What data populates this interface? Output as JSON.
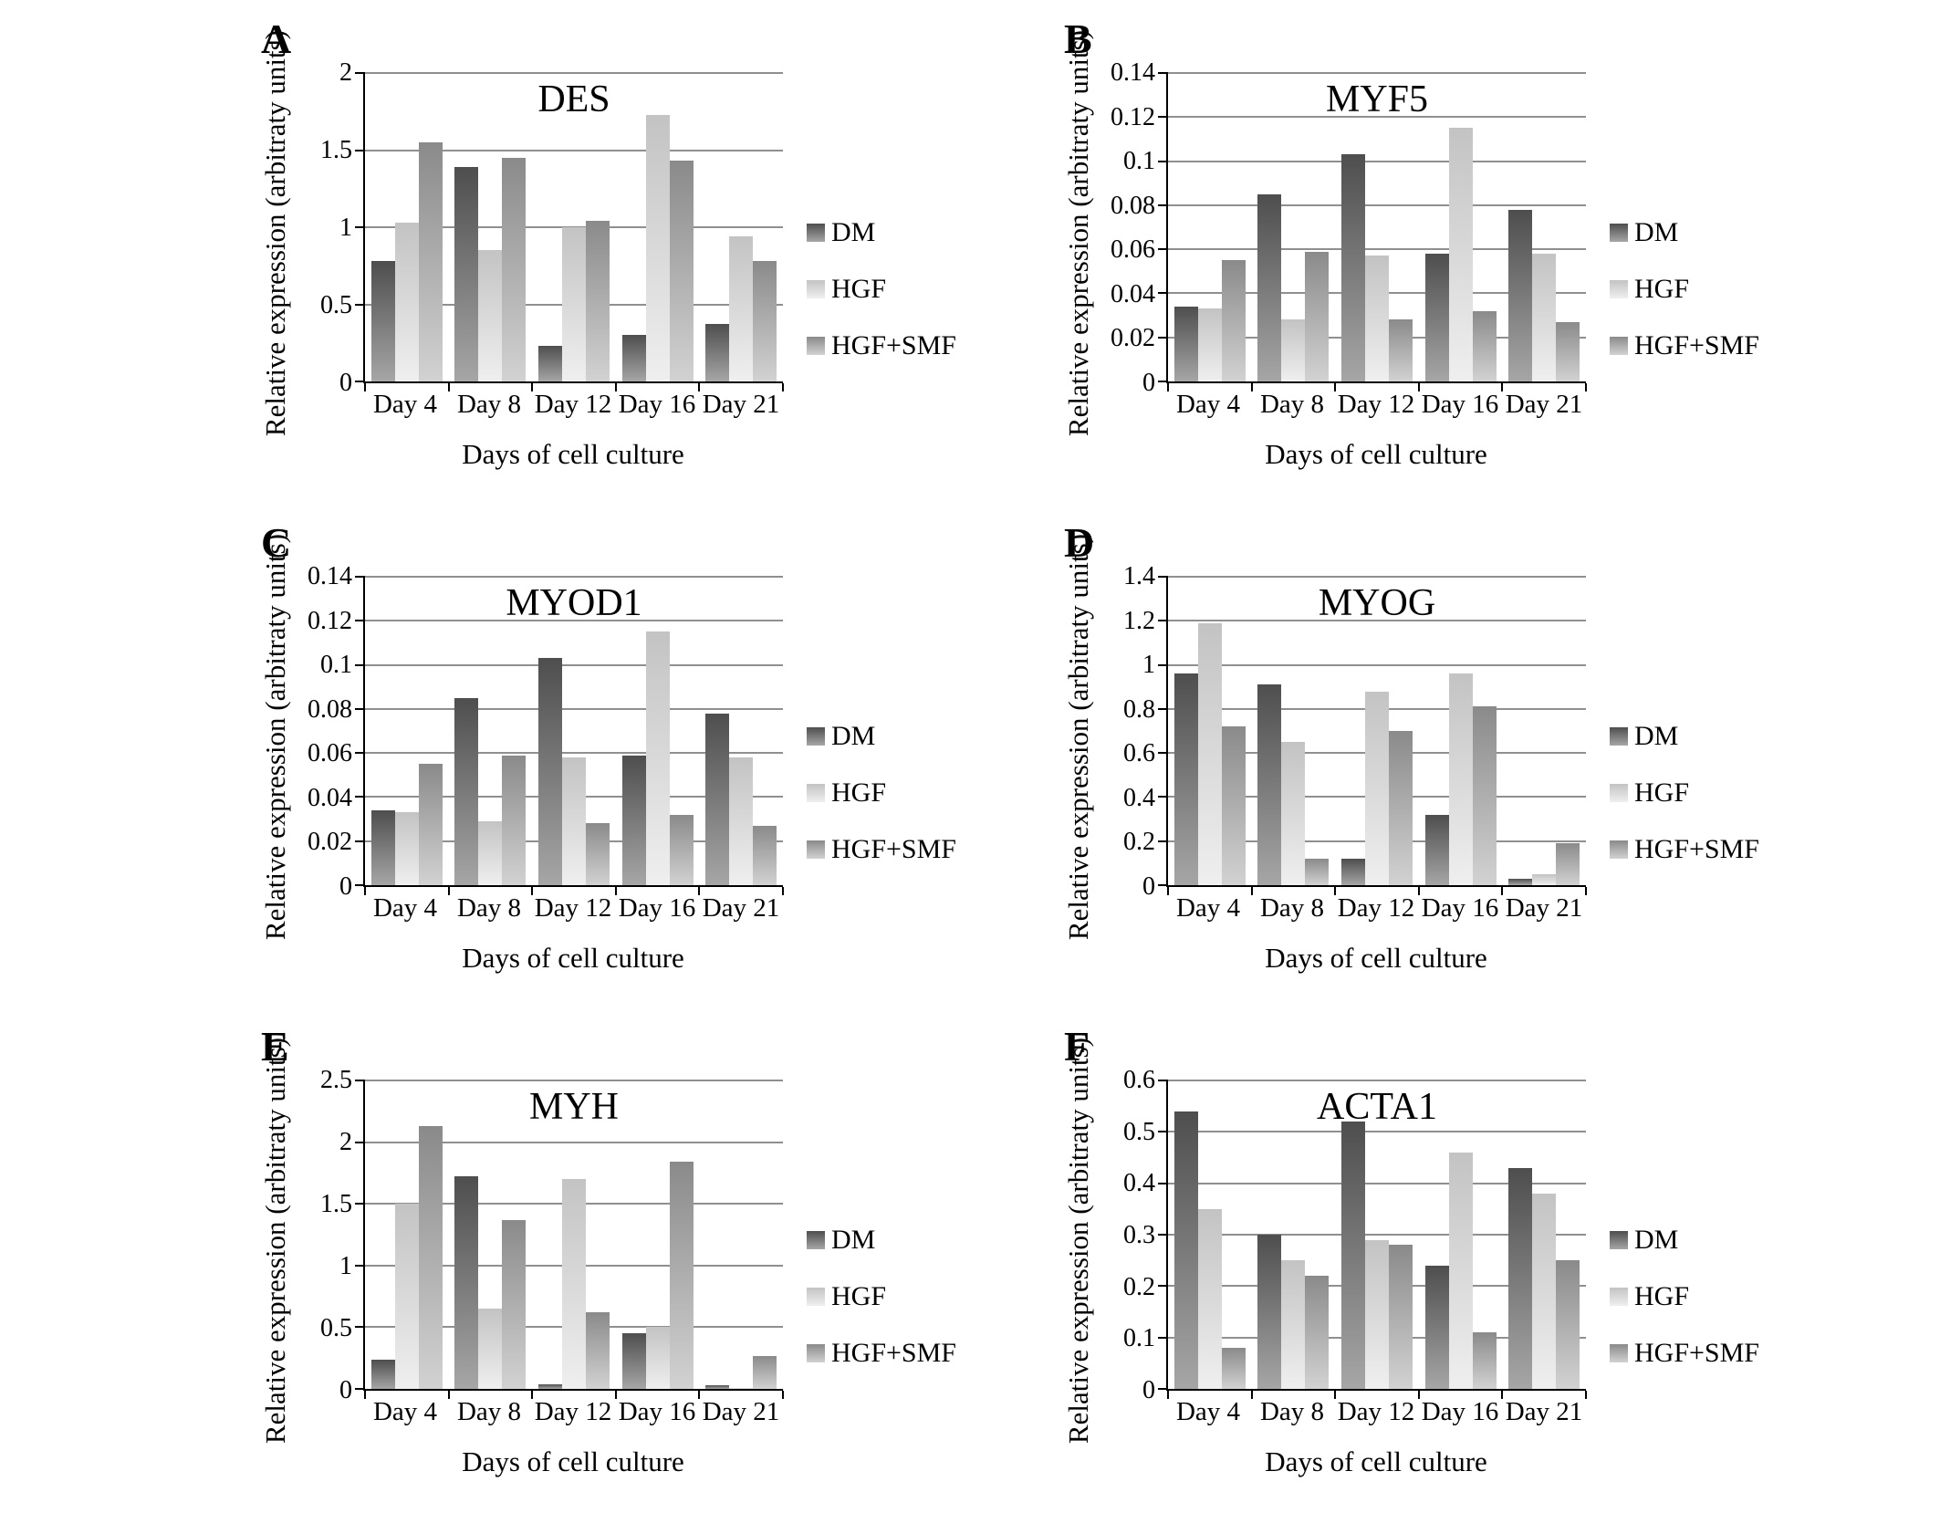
{
  "figure": {
    "background": "#ffffff",
    "ylabel": "Relative expression (arbitraty units)",
    "xlabel": "Days of cell culture",
    "categories": [
      "Day 4",
      "Day 8",
      "Day 12",
      "Day 16",
      "Day 21"
    ],
    "legend": [
      "DM",
      "HGF",
      "HGF+SMF"
    ],
    "series_styles": [
      {
        "name": "DM",
        "color_top": "#4e4e4e",
        "color_bottom": "#a6a6a6"
      },
      {
        "name": "HGF",
        "color_top": "#c3c3c3",
        "color_bottom": "#efefef"
      },
      {
        "name": "HGF+SMF",
        "color_top": "#8a8a8a",
        "color_bottom": "#d2d2d2"
      }
    ],
    "gridline_color": "#8f8f8f",
    "axis_color": "#000000"
  },
  "chart_data": [
    {
      "type": "bar",
      "panel": "A",
      "title": "DES",
      "categories": [
        "Day 4",
        "Day 8",
        "Day 12",
        "Day 16",
        "Day 21"
      ],
      "xlabel": "Days of cell culture",
      "ylabel": "Relative expression (arbitraty units)",
      "ylim": [
        0,
        2
      ],
      "ytick_labels": [
        "0",
        "0.5",
        "1",
        "1.5",
        "2"
      ],
      "grid": true,
      "legend": [
        "DM",
        "HGF",
        "HGF+SMF"
      ],
      "legend_position": "right",
      "series": [
        {
          "name": "DM",
          "values": [
            0.78,
            1.39,
            0.23,
            0.3,
            0.37
          ]
        },
        {
          "name": "HGF",
          "values": [
            1.03,
            0.85,
            1.0,
            1.73,
            0.94
          ]
        },
        {
          "name": "HGF+SMF",
          "values": [
            1.55,
            1.45,
            1.04,
            1.43,
            0.78
          ]
        }
      ]
    },
    {
      "type": "bar",
      "panel": "B",
      "title": "MYF5",
      "categories": [
        "Day 4",
        "Day 8",
        "Day 12",
        "Day 16",
        "Day 21"
      ],
      "xlabel": "Days of cell culture",
      "ylabel": "Relative expression (arbitraty units)",
      "ylim": [
        0,
        0.14
      ],
      "ytick_labels": [
        "0",
        "0.02",
        "0.04",
        "0.06",
        "0.08",
        "0.1",
        "0.12",
        "0.14"
      ],
      "grid": true,
      "legend": [
        "DM",
        "HGF",
        "HGF+SMF"
      ],
      "legend_position": "right",
      "series": [
        {
          "name": "DM",
          "values": [
            0.034,
            0.085,
            0.103,
            0.058,
            0.078
          ]
        },
        {
          "name": "HGF",
          "values": [
            0.033,
            0.028,
            0.057,
            0.115,
            0.058
          ]
        },
        {
          "name": "HGF+SMF",
          "values": [
            0.055,
            0.059,
            0.028,
            0.032,
            0.027
          ]
        }
      ]
    },
    {
      "type": "bar",
      "panel": "C",
      "title": "MYOD1",
      "categories": [
        "Day 4",
        "Day 8",
        "Day 12",
        "Day 16",
        "Day 21"
      ],
      "xlabel": "Days of cell culture",
      "ylabel": "Relative expression (arbitraty units)",
      "ylim": [
        0,
        0.14
      ],
      "ytick_labels": [
        "0",
        "0.02",
        "0.04",
        "0.06",
        "0.08",
        "0.1",
        "0.12",
        "0.14"
      ],
      "grid": true,
      "legend": [
        "DM",
        "HGF",
        "HGF+SMF"
      ],
      "legend_position": "right",
      "series": [
        {
          "name": "DM",
          "values": [
            0.034,
            0.085,
            0.103,
            0.059,
            0.078
          ]
        },
        {
          "name": "HGF",
          "values": [
            0.033,
            0.029,
            0.058,
            0.115,
            0.058
          ]
        },
        {
          "name": "HGF+SMF",
          "values": [
            0.055,
            0.059,
            0.028,
            0.032,
            0.027
          ]
        }
      ]
    },
    {
      "type": "bar",
      "panel": "D",
      "title": "MYOG",
      "categories": [
        "Day 4",
        "Day 8",
        "Day 12",
        "Day 16",
        "Day 21"
      ],
      "xlabel": "Days of cell culture",
      "ylabel": "Relative expression (arbitraty units)",
      "ylim": [
        0,
        1.4
      ],
      "ytick_labels": [
        "0",
        "0.2",
        "0.4",
        "0.6",
        "0.8",
        "1",
        "1.2",
        "1.4"
      ],
      "grid": true,
      "legend": [
        "DM",
        "HGF",
        "HGF+SMF"
      ],
      "legend_position": "right",
      "series": [
        {
          "name": "DM",
          "values": [
            0.96,
            0.91,
            0.12,
            0.32,
            0.03
          ]
        },
        {
          "name": "HGF",
          "values": [
            1.19,
            0.65,
            0.88,
            0.96,
            0.05
          ]
        },
        {
          "name": "HGF+SMF",
          "values": [
            0.72,
            0.12,
            0.7,
            0.81,
            0.19
          ]
        }
      ]
    },
    {
      "type": "bar",
      "panel": "E",
      "title": "MYH",
      "categories": [
        "Day 4",
        "Day 8",
        "Day 12",
        "Day 16",
        "Day 21"
      ],
      "xlabel": "Days of cell culture",
      "ylabel": "Relative expression (arbitraty units)",
      "ylim": [
        0,
        2.5
      ],
      "ytick_labels": [
        "0",
        "0.5",
        "1",
        "1.5",
        "2",
        "2.5"
      ],
      "grid": true,
      "legend": [
        "DM",
        "HGF",
        "HGF+SMF"
      ],
      "legend_position": "right",
      "series": [
        {
          "name": "DM",
          "values": [
            0.24,
            1.72,
            0.04,
            0.45,
            0.03
          ]
        },
        {
          "name": "HGF",
          "values": [
            1.5,
            0.65,
            1.7,
            0.5,
            0.01
          ]
        },
        {
          "name": "HGF+SMF",
          "values": [
            2.13,
            1.37,
            0.62,
            1.84,
            0.27
          ]
        }
      ]
    },
    {
      "type": "bar",
      "panel": "F",
      "title": "ACTA1",
      "categories": [
        "Day 4",
        "Day 8",
        "Day 12",
        "Day 16",
        "Day 21"
      ],
      "xlabel": "Days of cell culture",
      "ylabel": "Relative expression (arbitraty units)",
      "ylim": [
        0,
        0.6
      ],
      "ytick_labels": [
        "0",
        "0.1",
        "0.2",
        "0.3",
        "0.4",
        "0.5",
        "0.6"
      ],
      "grid": true,
      "legend": [
        "DM",
        "HGF",
        "HGF+SMF"
      ],
      "legend_position": "right",
      "series": [
        {
          "name": "DM",
          "values": [
            0.54,
            0.3,
            0.52,
            0.24,
            0.43
          ]
        },
        {
          "name": "HGF",
          "values": [
            0.35,
            0.25,
            0.29,
            0.46,
            0.38
          ]
        },
        {
          "name": "HGF+SMF",
          "values": [
            0.08,
            0.22,
            0.28,
            0.11,
            0.25
          ]
        }
      ]
    }
  ]
}
